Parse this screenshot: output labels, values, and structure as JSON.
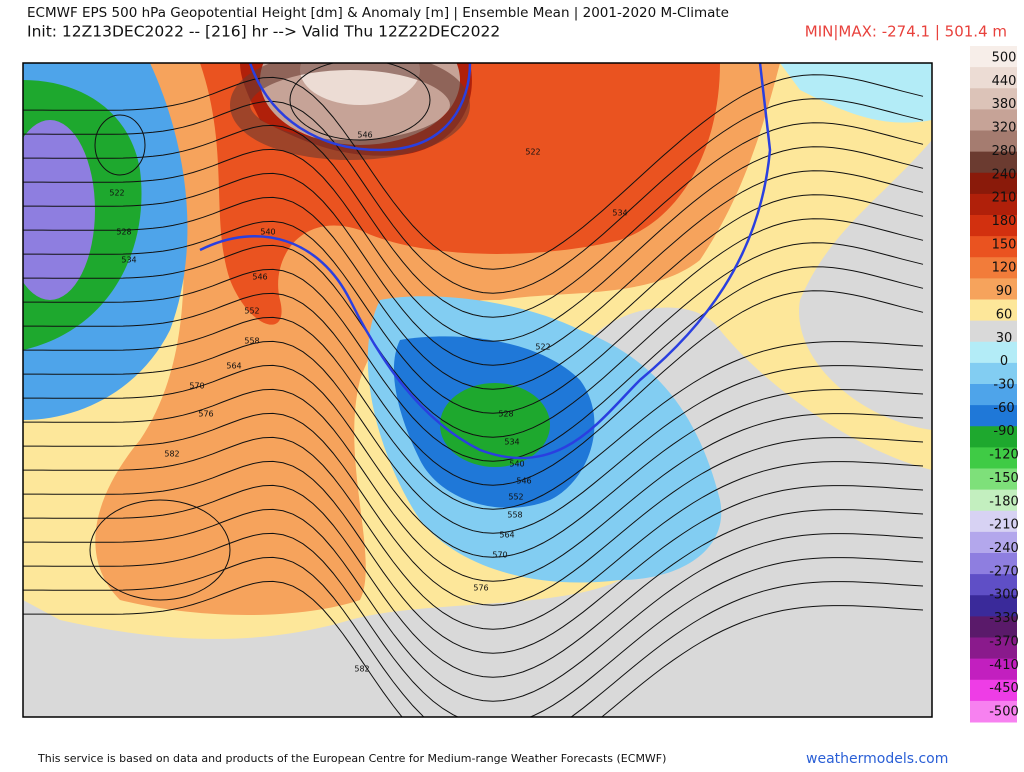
{
  "header": {
    "title": "ECMWF EPS 500 hPa Geopotential Height [dm] & Anomaly [m] | Ensemble Mean | 2001-2020 M-Climate",
    "subtitle": "Init: 12Z13DEC2022 -- [216] hr --> Valid Thu 12Z22DEC2022",
    "minmax": "MIN|MAX: -274.1 | 501.4 m"
  },
  "colorbar": {
    "labels": [
      500,
      440,
      380,
      320,
      280,
      240,
      210,
      180,
      150,
      120,
      90,
      60,
      30,
      0,
      -30,
      -60,
      -90,
      -120,
      -150,
      -180,
      -210,
      -240,
      -270,
      -300,
      -330,
      -370,
      -410,
      -450,
      -500
    ],
    "colors": [
      "#f7eee9",
      "#ecdcd4",
      "#dcc3b8",
      "#c6a397",
      "#a57c70",
      "#6b3b30",
      "#8a1a0a",
      "#b0200a",
      "#d2300f",
      "#ea5320",
      "#f27c3a",
      "#f6a35c",
      "#fde79a",
      "#d9d9d9",
      "#b3ecf7",
      "#82cdf2",
      "#4ea4ea",
      "#1f78d8",
      "#1ea82e",
      "#3fcb45",
      "#7ee07a",
      "#c3efbf",
      "#d7d2f3",
      "#b3a7ec",
      "#8e7ee0",
      "#5f4fc6",
      "#3a2a9a",
      "#5a1a6a",
      "#8a1a8c",
      "#c21fbf",
      "#ee3de6",
      "#f781f0"
    ]
  },
  "map": {
    "contour_labels": [
      546,
      522,
      534,
      522,
      528,
      534,
      540,
      546,
      552,
      558,
      564,
      570,
      576,
      582,
      522,
      528,
      534,
      540,
      546,
      552,
      558,
      564,
      570,
      576,
      582
    ]
  },
  "footer": {
    "credit": "This service is based on data and products of the European Centre for Medium-range Weather Forecasts (ECMWF)",
    "site": "weathermodels.com"
  }
}
